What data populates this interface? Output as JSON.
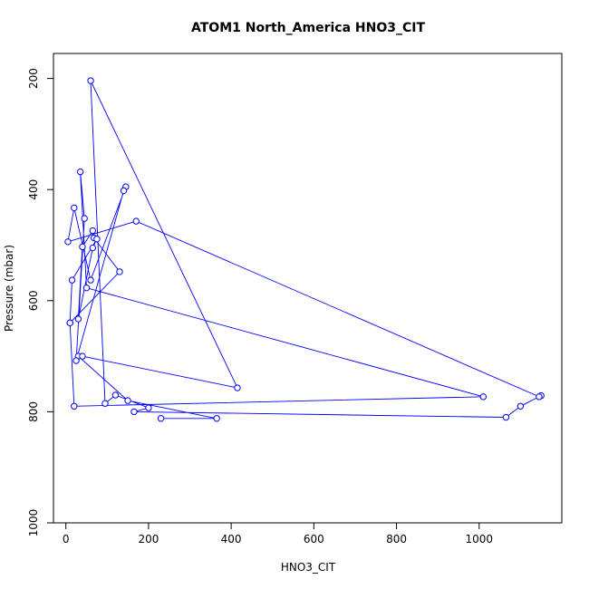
{
  "chart_data": {
    "type": "line",
    "title": "ATOM1 North_America HNO3_CIT",
    "xlabel": "HNO3_CIT",
    "ylabel": "Pressure (mbar)",
    "xlim": [
      -30,
      1200
    ],
    "ylim": [
      1000,
      155
    ],
    "y_reversed": true,
    "x_ticks": [
      0,
      200,
      400,
      600,
      800,
      1000
    ],
    "y_ticks": [
      200,
      400,
      600,
      800,
      1000
    ],
    "grid": false,
    "legend": "none",
    "series": [
      {
        "color": "#0000ff",
        "marker": "open-circle",
        "x": [
          230,
          365,
          150,
          30,
          40,
          415,
          60,
          95,
          120,
          200,
          165,
          1065,
          1100,
          1150,
          1145,
          170,
          5,
          20,
          60,
          145,
          140,
          25,
          45,
          35,
          50,
          1010,
          20,
          10,
          130,
          68,
          65,
          40,
          30,
          65,
          75,
          15,
          10
        ],
        "y": [
          812,
          812,
          780,
          700,
          700,
          757,
          204,
          785,
          770,
          793,
          800,
          810,
          790,
          771,
          773,
          457,
          494,
          433,
          563,
          395,
          402,
          708,
          452,
          368,
          577,
          773,
          790,
          640,
          548,
          487,
          474,
          503,
          633,
          505,
          489,
          563,
          640
        ]
      }
    ]
  }
}
